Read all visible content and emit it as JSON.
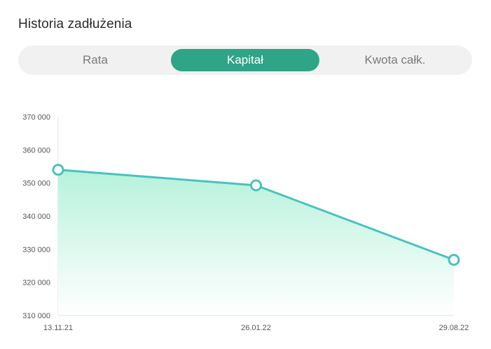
{
  "header": {
    "title": "Historia zadłużenia"
  },
  "tabs": [
    {
      "label": "Rata",
      "active": false
    },
    {
      "label": "Kapitał",
      "active": true
    },
    {
      "label": "Kwota całk.",
      "active": false
    }
  ],
  "colors": {
    "accent": "#2fa487",
    "line": "#48c2bd",
    "area_top": "#b6f2db",
    "area_bottom": "#ffffff"
  },
  "chart_data": {
    "type": "area",
    "x": [
      "13.11.21",
      "26.01.22",
      "29.08.22"
    ],
    "values": [
      354000,
      349300,
      326800
    ],
    "ylim": [
      310000,
      370000
    ],
    "yticks": [
      310000,
      320000,
      330000,
      340000,
      350000,
      360000,
      370000
    ],
    "ytick_labels": [
      "310 000",
      "320 000",
      "330 000",
      "340 000",
      "350 000",
      "360 000",
      "370 000"
    ],
    "grid": false,
    "title": "",
    "xlabel": "",
    "ylabel": ""
  }
}
